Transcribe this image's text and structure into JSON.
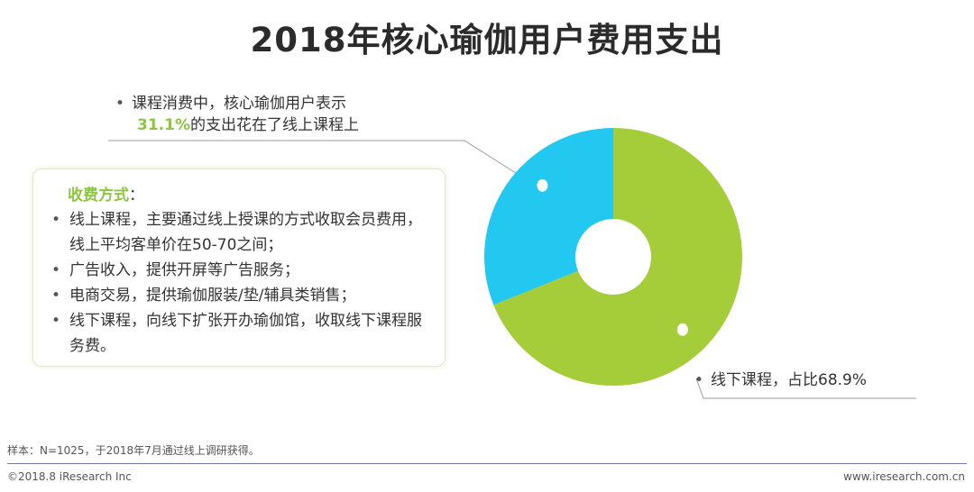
{
  "title": "2018年核心瑜伽用户费用支出",
  "callout_online": {
    "line1": "课程消费中，核心瑜伽用户表示",
    "highlight": "31.1%",
    "line2_rest": "的支出花在了线上课程上"
  },
  "callout_offline": {
    "text": "线下课程，占比68.9%"
  },
  "fee_box": {
    "heading": "收费方式",
    "heading_suffix": "：",
    "items": [
      "线上课程，主要通过线上授课的方式收取会员费用，线上平均客单价在50-70之间；",
      "广告收入，提供开屏等广告服务；",
      "电商交易，提供瑜伽服装/垫/辅具类销售；",
      "线下课程，向线下扩张开办瑜伽馆，收取线下课程服务费。"
    ]
  },
  "note": "样本：N=1025，于2018年7月通过线上调研获得。",
  "footer": {
    "copyright": "©2018.8 iResearch Inc",
    "url": "www.iresearch.com.cn"
  },
  "chart_data": {
    "type": "pie",
    "variant": "donut",
    "categories": [
      "线上课程",
      "线下课程"
    ],
    "values": [
      31.1,
      68.9
    ],
    "unit": "%",
    "colors": [
      "#22c8ef",
      "#a4cd39"
    ],
    "start": "12 o'clock",
    "direction": "counter-clockwise"
  }
}
